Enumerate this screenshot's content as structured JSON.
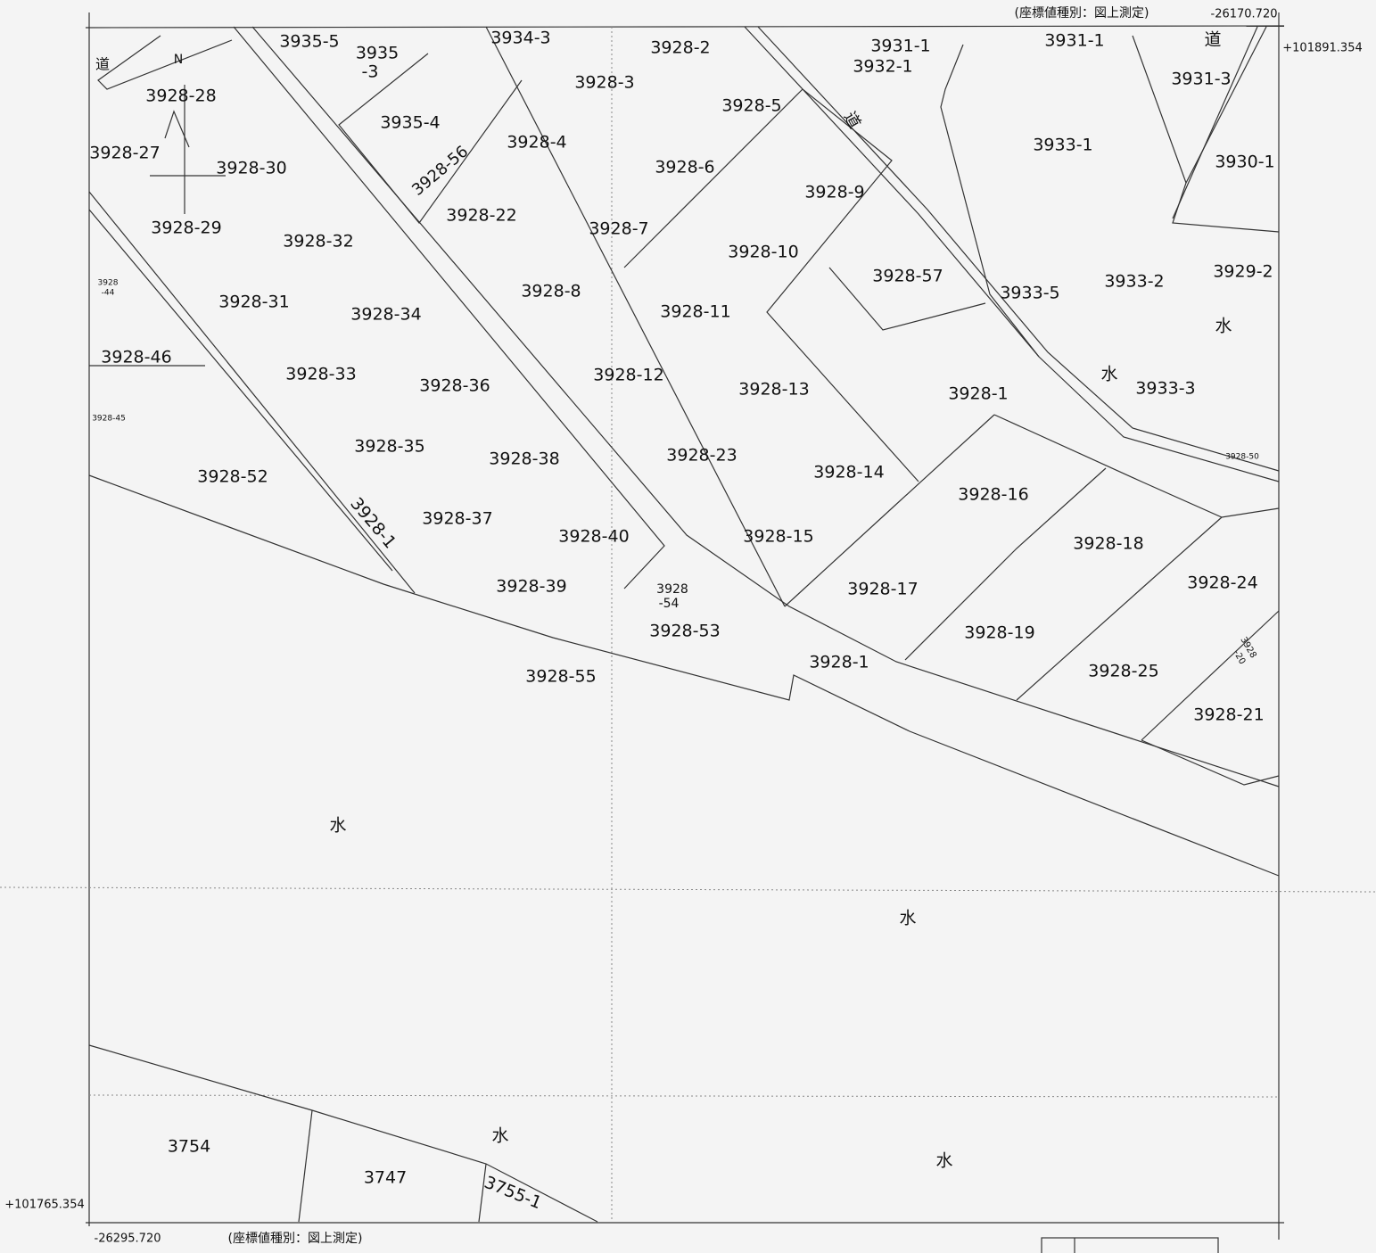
{
  "header": {
    "note_top": "(座標値種別：図上測定)",
    "x_top_right": "-26170.720",
    "y_top_right": "+101891.354"
  },
  "footer": {
    "y_bottom_left": "+101765.354",
    "x_bottom_left": "-26295.720",
    "note_bottom": "(座標値種別：図上測定)"
  },
  "north": "N",
  "labels": [
    "3935-5",
    "3935",
    "-3",
    "3934-3",
    "3928-2",
    "3931-1",
    "3932-1",
    "3931-1",
    "道",
    "3931-3",
    "道",
    "3928-28",
    "3928-3",
    "3928-5",
    "道",
    "3935-4",
    "3928-4",
    "3933-1",
    "3928-27",
    "3930-1",
    "3928-30",
    "3928-6",
    "3928-56",
    "3928-9",
    "3928-22",
    "3928-29",
    "3928-7",
    "3928-32",
    "3928-10",
    "3929-2",
    "3928-57",
    "3933-2",
    "3928",
    "-44",
    "3933-5",
    "3928-8",
    "3928-31",
    "3928-34",
    "3928-11",
    "水",
    "3928-46",
    "水",
    "3928-33",
    "3928-12",
    "3928-36",
    "3933-3",
    "3928-13",
    "3928-1",
    "3928-45",
    "3928-35",
    "3928-23",
    "3928-50",
    "3928-38",
    "3928-14",
    "3928-52",
    "3928-16",
    "3928-1",
    "3928-37",
    "3928-40",
    "3928-15",
    "3928-18",
    "3928-24",
    "3928-39",
    "3928",
    "-54",
    "3928-17",
    "3928-53",
    "3928-19",
    "3928",
    "-20",
    "3928-1",
    "3928-25",
    "3928-55",
    "3928-21",
    "水",
    "水",
    "3754",
    "水",
    "3747",
    "水",
    "3755-1"
  ]
}
